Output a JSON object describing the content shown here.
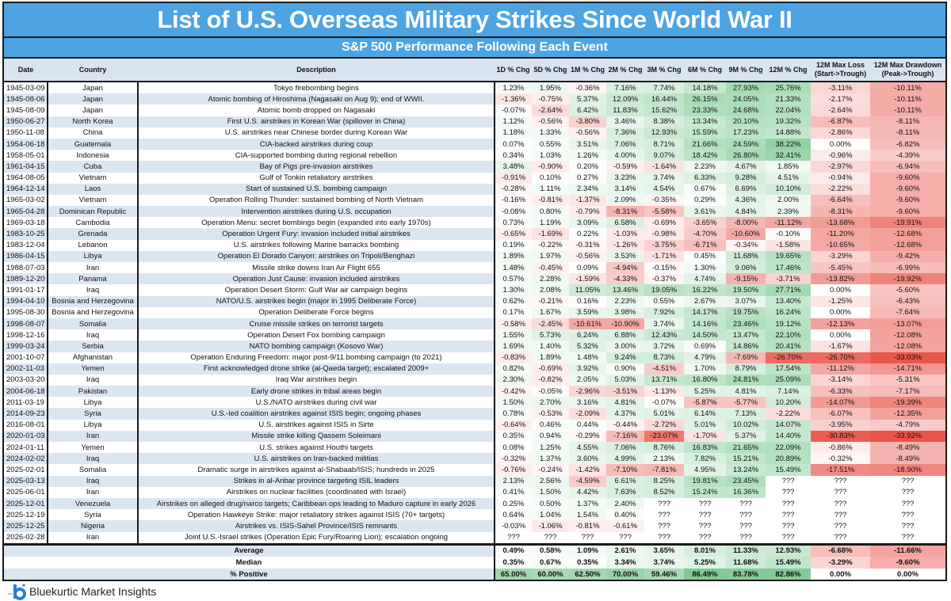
{
  "title": "List of U.S. Overseas Military Strikes Since World War II",
  "subtitle": "S&P 500 Performance Following Each Event",
  "colors": {
    "title_bg": "#4ea4e2",
    "header_bg": "#d9e4f1",
    "stripe": "#dce6f1",
    "positive": "#63be7b",
    "negative": "#e84a3f"
  },
  "chart_data": {
    "type": "table",
    "columns": [
      "Date",
      "Country",
      "Description",
      "1D % Chg",
      "5D % Chg",
      "1M % Chg",
      "2M % Chg",
      "3M % Chg",
      "6M % Chg",
      "9M % Chg",
      "12M % Chg",
      "12M Max Loss (Start->Trough)",
      "12M Max Drawdown (Peak->Trough)"
    ],
    "column_headers": [
      [
        "Date"
      ],
      [
        "Country"
      ],
      [
        "Description"
      ],
      [
        "1D % Chg"
      ],
      [
        "5D % Chg"
      ],
      [
        "1M % Chg"
      ],
      [
        "2M % Chg"
      ],
      [
        "3M % Chg"
      ],
      [
        "6M % Chg"
      ],
      [
        "9M % Chg"
      ],
      [
        "12M % Chg"
      ],
      [
        "12M Max Loss",
        "(Start->Trough)"
      ],
      [
        "12M Max Drawdown",
        "(Peak->Trough)"
      ]
    ],
    "rows": [
      [
        "1945-03-09",
        "Japan",
        "Tokyo firebombing begins",
        "1.23%",
        "1.95%",
        "-0.36%",
        "7.16%",
        "7.74%",
        "14.18%",
        "27.93%",
        "25.76%",
        "-3.11%",
        "-10.11%"
      ],
      [
        "1945-08-06",
        "Japan",
        "Atomic bombing of Hiroshima (Nagasaki on Aug 9); end of WWII.",
        "-1.36%",
        "-0.75%",
        "5.37%",
        "12.09%",
        "16.44%",
        "26.15%",
        "24.05%",
        "21.33%",
        "-2.17%",
        "-10.11%"
      ],
      [
        "1945-08-09",
        "Japan",
        "Atomic bomb dropped on Nagasaki",
        "-0.07%",
        "-2.64%",
        "6.42%",
        "11.83%",
        "15.62%",
        "23.33%",
        "24.68%",
        "22.04%",
        "-2.64%",
        "-10.11%"
      ],
      [
        "1950-06-27",
        "North Korea",
        "First U.S. airstrikes in Korean War (spillover in China)",
        "1.12%",
        "-0.56%",
        "-3.80%",
        "3.46%",
        "8.38%",
        "13.34%",
        "20.10%",
        "19.32%",
        "-6.87%",
        "-8.11%"
      ],
      [
        "1950-11-08",
        "China",
        "U.S. airstrikes near Chinese border during Korean War",
        "1.18%",
        "1.33%",
        "-0.56%",
        "7.36%",
        "12.93%",
        "15.59%",
        "17.23%",
        "14.88%",
        "-2.86%",
        "-8.11%"
      ],
      [
        "1954-06-18",
        "Guatemala",
        "CIA-backed airstrikes during coup",
        "0.07%",
        "0.55%",
        "3.51%",
        "7.06%",
        "8.71%",
        "21.66%",
        "24.59%",
        "38.22%",
        "0.00%",
        "-6.82%"
      ],
      [
        "1958-05-01",
        "Indonesia",
        "CIA-supported bombing during regional rebellion",
        "0.34%",
        "1.03%",
        "1.26%",
        "4.00%",
        "9.07%",
        "18.42%",
        "26.80%",
        "32.41%",
        "-0.96%",
        "-4.39%"
      ],
      [
        "1961-04-15",
        "Cuba",
        "Bay of Pigs pre-invasion airstrikes",
        "3.48%",
        "-0.90%",
        "0.20%",
        "-0.59%",
        "-1.64%",
        "2.23%",
        "4.67%",
        "1.85%",
        "-2.97%",
        "-6.94%"
      ],
      [
        "1964-08-05",
        "Vietnam",
        "Gulf of Tonkin retaliatory airstrikes",
        "-0.91%",
        "0.10%",
        "0.27%",
        "3.23%",
        "3.74%",
        "6.33%",
        "9.28%",
        "4.51%",
        "-0.94%",
        "-9.60%"
      ],
      [
        "1964-12-14",
        "Laos",
        "Start of sustained U.S. bombing campaign",
        "-0.28%",
        "1.11%",
        "2.34%",
        "3.14%",
        "4.54%",
        "0.67%",
        "6.69%",
        "10.10%",
        "-2.22%",
        "-9.60%"
      ],
      [
        "1965-03-02",
        "Vietnam",
        "Operation Rolling Thunder: sustained bombing of North Vietnam",
        "-0.16%",
        "-0.81%",
        "-1.37%",
        "2.09%",
        "-0.35%",
        "0.29%",
        "4.36%",
        "2.00%",
        "-6.64%",
        "-9.60%"
      ],
      [
        "1965-04-28",
        "Dominican Republic",
        "Intervention airstrikes during U.S. occupation",
        "-0.08%",
        "0.80%",
        "-0.79%",
        "-8.31%",
        "-5.58%",
        "3.61%",
        "4.84%",
        "2.39%",
        "-8.31%",
        "-9.60%"
      ],
      [
        "1969-03-18",
        "Cambodia",
        "Operation Menu: secret bombings begin (expanded into early 1970s)",
        "0.73%",
        "1.19%",
        "3.09%",
        "6.58%",
        "-0.69%",
        "-3.65%",
        "-8.00%",
        "-11.12%",
        "-13.68%",
        "-19.91%"
      ],
      [
        "1983-10-25",
        "Grenada",
        "Operation Urgent Fury: invasion included initial airstrikes",
        "-0.65%",
        "-1.69%",
        "0.22%",
        "-1.03%",
        "-0.98%",
        "-4.70%",
        "-10.60%",
        "-0.10%",
        "-11.20%",
        "-12.68%"
      ],
      [
        "1983-12-04",
        "Lebanon",
        "U.S. airstrikes following Marine barracks bombing",
        "0.19%",
        "-0.22%",
        "-0.31%",
        "-1.26%",
        "-3.75%",
        "-6.71%",
        "-0.34%",
        "-1.58%",
        "-10.65%",
        "-12.68%"
      ],
      [
        "1986-04-15",
        "Libya",
        "Operation El Dorado Canyon: airstrikes on Tripoli/Benghazi",
        "1.89%",
        "1.97%",
        "-0.56%",
        "3.53%",
        "-1.71%",
        "0.45%",
        "11.68%",
        "19.65%",
        "-3.29%",
        "-9.42%"
      ],
      [
        "1988-07-03",
        "Iran",
        "Missile strike downs Iran Air Flight 655",
        "1.48%",
        "-0.45%",
        "0.09%",
        "-4.94%",
        "-0.15%",
        "1.30%",
        "9.06%",
        "17.46%",
        "-5.45%",
        "-6.99%"
      ],
      [
        "1989-12-20",
        "Panama",
        "Operation Just Cause: invasion included airstrikes",
        "0.57%",
        "2.28%",
        "-1.59%",
        "-4.33%",
        "-0.37%",
        "4.74%",
        "-9.15%",
        "-3.71%",
        "-13.82%",
        "-19.92%"
      ],
      [
        "1991-01-17",
        "Iraq",
        "Operation Desert Storm: Gulf War air campaign begins",
        "1.30%",
        "2.08%",
        "11.05%",
        "13.46%",
        "19.05%",
        "16.22%",
        "19.50%",
        "27.71%",
        "0.00%",
        "-5.60%"
      ],
      [
        "1994-04-10",
        "Bosnia and Herzegovina",
        "NATO/U.S. airstrikes begin (major in 1995 Deliberate Force)",
        "0.62%",
        "-0.21%",
        "0.16%",
        "2.23%",
        "0.55%",
        "2.67%",
        "3.07%",
        "13.40%",
        "-1.25%",
        "-6.43%"
      ],
      [
        "1995-08-30",
        "Bosnia and Herzegovina",
        "Operation Deliberate Force begins",
        "0.17%",
        "1.67%",
        "3.59%",
        "3.98%",
        "7.92%",
        "14.17%",
        "19.75%",
        "16.24%",
        "0.00%",
        "-7.64%"
      ],
      [
        "1998-08-07",
        "Somalia",
        "Cruise missile strikes on terrorist targets",
        "-0.58%",
        "-2.45%",
        "-10.61%",
        "-10.90%",
        "3.74%",
        "14.16%",
        "23.46%",
        "19.12%",
        "-12.13%",
        "-13.07%"
      ],
      [
        "1998-12-16",
        "Iraq",
        "Operation Desert Fox bombing campaign",
        "1.55%",
        "5.73%",
        "6.24%",
        "6.88%",
        "12.43%",
        "14.50%",
        "13.47%",
        "22.10%",
        "0.00%",
        "-12.08%"
      ],
      [
        "1999-03-24",
        "Serbia",
        "NATO bombing campaign (Kosovo War)",
        "1.69%",
        "1.40%",
        "5.32%",
        "3.00%",
        "3.72%",
        "0.69%",
        "14.86%",
        "20.41%",
        "-1.67%",
        "-12.08%"
      ],
      [
        "2001-10-07",
        "Afghanistan",
        "Operation Enduring Freedom: major post-9/11 bombing campaign (to 2021)",
        "-0.83%",
        "1.89%",
        "1.48%",
        "9.24%",
        "8.73%",
        "4.79%",
        "-7.69%",
        "-26.70%",
        "-26.70%",
        "-33.03%"
      ],
      [
        "2002-11-03",
        "Yemen",
        "First acknowledged drone strike (al-Qaeda target); escalated 2009+",
        "0.82%",
        "-0.69%",
        "3.92%",
        "0.90%",
        "-4.51%",
        "1.70%",
        "8.79%",
        "17.54%",
        "-11.12%",
        "-14.71%"
      ],
      [
        "2003-03-20",
        "Iraq",
        "Iraq War airstrikes begin",
        "2.30%",
        "-0.82%",
        "2.05%",
        "5.03%",
        "13.71%",
        "16.80%",
        "24.81%",
        "25.09%",
        "-3.14%",
        "-5.31%"
      ],
      [
        "2004-06-18",
        "Pakistan",
        "Early drone strikes in tribal areas begin",
        "-0.42%",
        "-0.05%",
        "-2.96%",
        "-3.51%",
        "-1.13%",
        "5.25%",
        "4.81%",
        "7.14%",
        "-6.33%",
        "-7.17%"
      ],
      [
        "2011-03-19",
        "Libya",
        "U.S./NATO airstrikes during civil war",
        "1.50%",
        "2.70%",
        "3.16%",
        "4.81%",
        "-0.07%",
        "-5.87%",
        "-5.77%",
        "10.20%",
        "-14.07%",
        "-19.39%"
      ],
      [
        "2014-09-23",
        "Syria",
        "U.S.-led coalition airstrikes against ISIS begin; ongoing phases",
        "0.78%",
        "-0.53%",
        "-2.09%",
        "4.37%",
        "5.01%",
        "6.14%",
        "7.13%",
        "-2.22%",
        "-6.07%",
        "-12.35%"
      ],
      [
        "2016-08-01",
        "Libya",
        "U.S. airstrikes against ISIS in Sirte",
        "-0.64%",
        "0.46%",
        "0.44%",
        "-0.44%",
        "-2.72%",
        "5.01%",
        "10.02%",
        "14.07%",
        "-3.95%",
        "-4.79%"
      ],
      [
        "2020-01-03",
        "Iran",
        "Missile strike killing Qassem Soleimani",
        "0.35%",
        "0.94%",
        "-0.29%",
        "-7.16%",
        "-23.07%",
        "-1.70%",
        "5.37%",
        "14.40%",
        "-30.83%",
        "-33.92%"
      ],
      [
        "2024-01-11",
        "Yemen",
        "U.S. strikes against Houthi targets",
        "0.08%",
        "1.25%",
        "4.55%",
        "7.06%",
        "8.76%",
        "16.83%",
        "21.65%",
        "22.09%",
        "-0.86%",
        "-8.49%"
      ],
      [
        "2024-02-02",
        "Iraq",
        "U.S. airstrikes on Iran-backed militias",
        "-0.32%",
        "1.37%",
        "3.60%",
        "4.99%",
        "2.13%",
        "7.82%",
        "15.21%",
        "20.89%",
        "-0.32%",
        "-8.49%"
      ],
      [
        "2025-02-01",
        "Somalia",
        "Dramatic surge in airstrikes against al-Shabaab/ISIS; hundreds in 2025",
        "-0.76%",
        "-0.24%",
        "-1.42%",
        "-7.10%",
        "-7.81%",
        "4.95%",
        "13.24%",
        "15.49%",
        "-17.51%",
        "-18.90%"
      ],
      [
        "2025-03-13",
        "Iraq",
        "Strikes in al-Anbar province targeting ISIL leaders",
        "2.13%",
        "2.56%",
        "-4.59%",
        "6.61%",
        "8.25%",
        "19.81%",
        "23.45%",
        "???",
        "???",
        "???"
      ],
      [
        "2025-06-01",
        "Iran",
        "Airstrikes on nuclear facilities (coordinated with Israel)",
        "0.41%",
        "1.50%",
        "4.42%",
        "7.63%",
        "8.52%",
        "15.24%",
        "16.36%",
        "???",
        "???",
        "???"
      ],
      [
        "2025-12-01",
        "Venezuela",
        "Airstrikes on alleged drug/narco targets; Caribbean ops leading to Maduro capture in early 2026",
        "0.25%",
        "0.50%",
        "1.37%",
        "2.40%",
        "???",
        "???",
        "???",
        "???",
        "???",
        "???"
      ],
      [
        "2025-12-19",
        "Syria",
        "Operation Hawkeye Strike: major retaliatory strikes against ISIS (70+ targets)",
        "0.64%",
        "1.04%",
        "1.54%",
        "0.40%",
        "???",
        "???",
        "???",
        "???",
        "???",
        "???"
      ],
      [
        "2025-12-25",
        "Nigeria",
        "Airstrikes vs. ISIS-Sahel Province/ISIS remnants",
        "-0.03%",
        "-1.06%",
        "-0.81%",
        "-0.61%",
        "???",
        "???",
        "???",
        "???",
        "???",
        "???"
      ],
      [
        "2026-02-28",
        "Iran",
        "Joint U.S.-Israel strikes (Operation Epic Fury/Roaring Lion); escalation ongoing",
        "???",
        "???",
        "???",
        "???",
        "???",
        "???",
        "???",
        "???",
        "???",
        "???"
      ]
    ],
    "summary": [
      {
        "label": "Average",
        "values": [
          "0.49%",
          "0.58%",
          "1.09%",
          "2.61%",
          "3.65%",
          "8.01%",
          "11.33%",
          "12.93%",
          "-6.68%",
          "-11.66%"
        ]
      },
      {
        "label": "Median",
        "values": [
          "0.35%",
          "0.67%",
          "0.35%",
          "3.34%",
          "3.74%",
          "5.25%",
          "11.68%",
          "15.49%",
          "-3.29%",
          "-9.60%"
        ]
      },
      {
        "label": "% Positive",
        "values": [
          "65.00%",
          "60.00%",
          "62.50%",
          "70.00%",
          "59.46%",
          "86.49%",
          "83.78%",
          "82.86%",
          "0.00%",
          "0.00%"
        ]
      }
    ]
  },
  "footer": {
    "brand": "Bluekurtic Market Insights",
    "logo_icon": "bluekurtic-logo-icon"
  }
}
